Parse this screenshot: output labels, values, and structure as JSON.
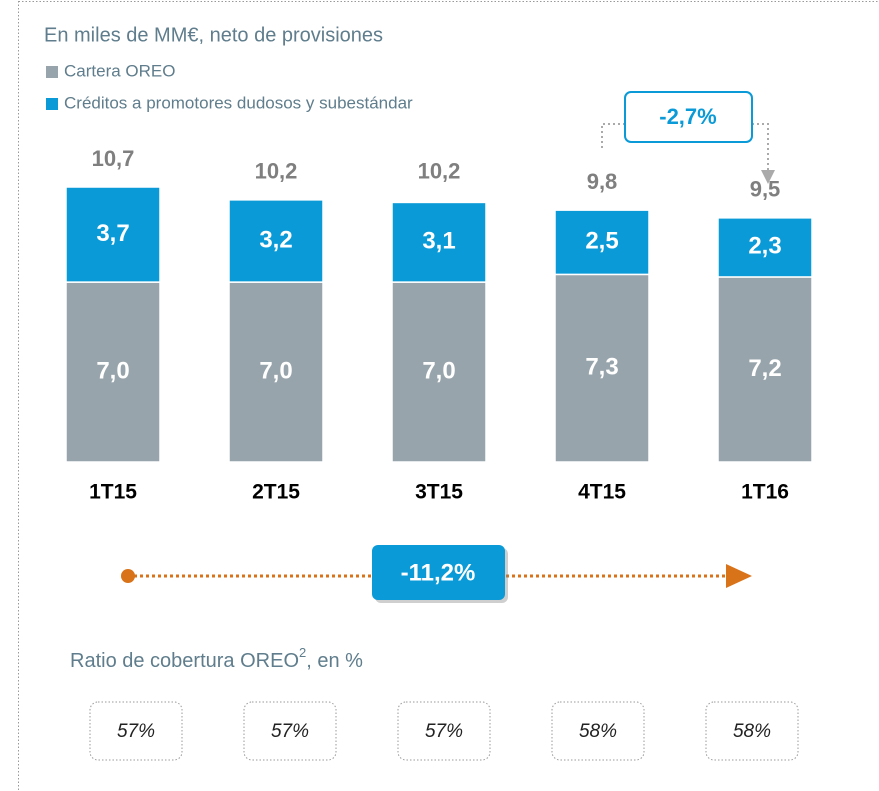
{
  "chart_data": {
    "type": "bar",
    "stacked": true,
    "subtitle": "En miles de MM€, neto de provisiones",
    "categories": [
      "1T15",
      "2T15",
      "3T15",
      "4T15",
      "1T16"
    ],
    "series": [
      {
        "name": "Cartera OREO",
        "color": "#98a4ab",
        "values": [
          7.0,
          7.0,
          7.0,
          7.3,
          7.2
        ],
        "value_labels": [
          "7,0",
          "7,0",
          "7,0",
          "7,3",
          "7,2"
        ]
      },
      {
        "name": "Créditos a promotores dudosos y subestándar",
        "color": "#0a9ad7",
        "values": [
          3.7,
          3.2,
          3.1,
          2.5,
          2.3
        ],
        "value_labels": [
          "3,7",
          "3,2",
          "3,1",
          "2,5",
          "2,3"
        ]
      }
    ],
    "totals": [
      10.7,
      10.2,
      10.2,
      9.8,
      9.5
    ],
    "total_labels": [
      "10,7",
      "10,2",
      "10,2",
      "9,8",
      "9,5"
    ],
    "annotations": [
      "-2,7%",
      "-11,2%"
    ],
    "ratio": {
      "title": "Ratio de cobertura OREO",
      "sup": "2",
      "suffix": ", en %",
      "values": [
        57,
        57,
        57,
        58,
        58
      ],
      "value_labels": [
        "57%",
        "57%",
        "57%",
        "58%",
        "58%"
      ]
    }
  }
}
